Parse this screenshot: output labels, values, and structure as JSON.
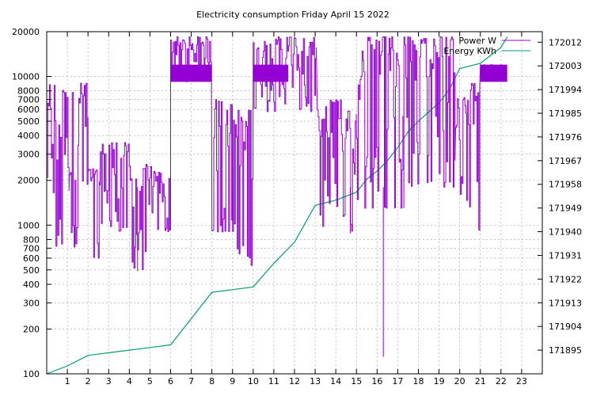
{
  "chart_data": {
    "type": "line",
    "title": "Electricity consumption Friday April 15 2022",
    "xlim": [
      0,
      24
    ],
    "x_ticks": [
      1,
      2,
      3,
      4,
      5,
      6,
      7,
      8,
      9,
      10,
      11,
      12,
      13,
      14,
      15,
      16,
      17,
      18,
      19,
      20,
      21,
      22,
      23
    ],
    "y_left": {
      "scale": "log",
      "lim": [
        100,
        20000
      ],
      "ticks": [
        100,
        200,
        300,
        400,
        500,
        600,
        700,
        800,
        1000,
        2000,
        3000,
        4000,
        5000,
        6000,
        7000,
        8000,
        10000,
        20000
      ]
    },
    "y_right": {
      "scale": "linear",
      "lim": [
        171886,
        172016
      ],
      "ticks": [
        171895,
        171904,
        171913,
        171922,
        171931,
        171940,
        171949,
        171958,
        171967,
        171976,
        171985,
        171994,
        172003,
        172012
      ]
    },
    "grid": true,
    "legend_position": "top-right",
    "colors": {
      "power": "#9400d3",
      "energy": "#009e73"
    },
    "series": [
      {
        "name": "Power W",
        "axis": "left",
        "style": "spiky",
        "segments": [
          {
            "x": [
              0.0,
              1.1
            ],
            "low": 700,
            "high": 9000
          },
          {
            "x": [
              1.1,
              2.0
            ],
            "low": 600,
            "high": 9000
          },
          {
            "x": [
              2.0,
              2.6
            ],
            "low": 600,
            "high": 2400
          },
          {
            "x": [
              2.6,
              4.0
            ],
            "low": 900,
            "high": 3600
          },
          {
            "x": [
              4.0,
              5.1
            ],
            "low": 500,
            "high": 2600
          },
          {
            "x": [
              5.1,
              6.0
            ],
            "low": 900,
            "high": 2300
          },
          {
            "x": [
              6.0,
              8.0
            ],
            "low": 9200,
            "high": 18500
          },
          {
            "x": [
              8.0,
              9.0
            ],
            "low": 900,
            "high": 7000
          },
          {
            "x": [
              9.0,
              10.0
            ],
            "low": 500,
            "high": 6000
          },
          {
            "x": [
              10.0,
              13.1
            ],
            "low": 5800,
            "high": 18500
          },
          {
            "x": [
              13.1,
              15.0
            ],
            "low": 900,
            "high": 7000
          },
          {
            "x": [
              15.0,
              17.3
            ],
            "low": 1300,
            "high": 18500
          },
          {
            "x": [
              17.3,
              19.8
            ],
            "low": 1800,
            "high": 18500
          },
          {
            "x": [
              19.8,
              21.0
            ],
            "low": 900,
            "high": 9000
          },
          {
            "x": [
              21.0,
              22.3
            ],
            "low": 9200,
            "high": 12000
          }
        ],
        "annotations": [
          {
            "x": 4.4,
            "y": 490
          },
          {
            "x": 14.7,
            "y": 880
          },
          {
            "x": 16.3,
            "y": 130
          }
        ]
      },
      {
        "name": "Energy KWh",
        "axis": "right",
        "x": [
          0.0,
          1.0,
          2.0,
          3.0,
          4.0,
          5.0,
          6.0,
          7.0,
          8.0,
          9.0,
          10.0,
          11.0,
          12.0,
          13.0,
          14.0,
          15.0,
          15.5,
          16.0,
          16.5,
          17.0,
          17.5,
          18.0,
          19.0,
          19.5,
          20.0,
          21.0,
          22.0,
          22.3
        ],
        "y": [
          171886,
          171889,
          171893,
          171894,
          171895,
          171896,
          171897,
          171907,
          171917,
          171918,
          171919,
          171928,
          171936,
          171950,
          171952,
          171955,
          171960,
          171963,
          171967,
          171972,
          171978,
          171982,
          171989,
          171994,
          172002,
          172004,
          172010,
          172014
        ]
      }
    ]
  }
}
